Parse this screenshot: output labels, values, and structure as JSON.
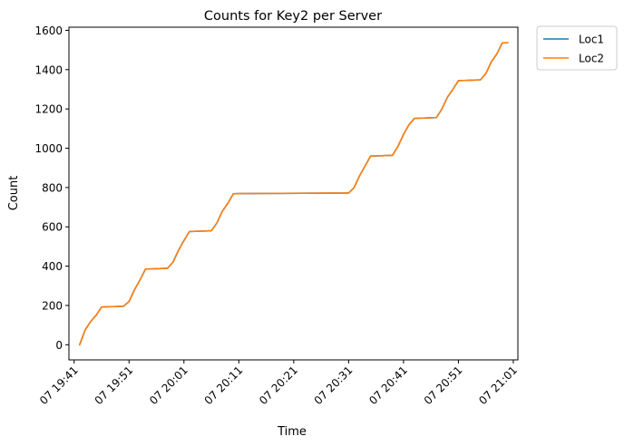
{
  "chart_data": {
    "type": "line",
    "title": "Counts for Key2 per Server",
    "xlabel": "Time",
    "ylabel": "Count",
    "x_ticks": [
      "07 19:41",
      "07 19:51",
      "07 20:01",
      "07 20:11",
      "07 20:21",
      "07 20:31",
      "07 20:41",
      "07 20:51",
      "07 21:01"
    ],
    "y_ticks": [
      "0",
      "200",
      "400",
      "600",
      "800",
      "1000",
      "1200",
      "1400",
      "1600"
    ],
    "xlim": [
      "07 19:40:03",
      "07 21:01:50"
    ],
    "ylim": [
      -77,
      1616
    ],
    "grid": false,
    "legend": "outside-top-right",
    "x": [
      "07 19:42",
      "07 19:43",
      "07 19:44",
      "07 19:45",
      "07 19:46",
      "07 19:47",
      "07 19:48",
      "07 19:49",
      "07 19:50",
      "07 19:51",
      "07 19:52",
      "07 19:53",
      "07 19:54",
      "07 19:55",
      "07 19:56",
      "07 19:57",
      "07 19:58",
      "07 19:59",
      "07 20:00",
      "07 20:01",
      "07 20:02",
      "07 20:03",
      "07 20:04",
      "07 20:05",
      "07 20:06",
      "07 20:07",
      "07 20:08",
      "07 20:09",
      "07 20:10",
      "07 20:11",
      "07 20:31",
      "07 20:32",
      "07 20:33",
      "07 20:34",
      "07 20:35",
      "07 20:36",
      "07 20:37",
      "07 20:38",
      "07 20:39",
      "07 20:40",
      "07 20:41",
      "07 20:42",
      "07 20:43",
      "07 20:44",
      "07 20:45",
      "07 20:46",
      "07 20:47",
      "07 20:48",
      "07 20:49",
      "07 20:50",
      "07 20:51",
      "07 20:52",
      "07 20:53",
      "07 20:54",
      "07 20:55",
      "07 20:56",
      "07 20:57",
      "07 20:58",
      "07 20:59",
      "07 21:00"
    ],
    "series": [
      {
        "name": "Loc1",
        "color": "#1f77b4",
        "values": [
          0,
          75,
          118,
          150,
          192,
          193,
          194,
          195,
          196,
          220,
          280,
          330,
          385,
          386,
          387,
          388,
          389,
          420,
          480,
          530,
          576,
          577,
          578,
          579,
          580,
          620,
          680,
          720,
          768,
          769,
          772,
          800,
          860,
          910,
          960,
          961,
          962,
          963,
          964,
          1010,
          1070,
          1120,
          1152,
          1153,
          1154,
          1155,
          1156,
          1200,
          1260,
          1300,
          1344,
          1345,
          1346,
          1347,
          1348,
          1380,
          1440,
          1480,
          1536,
          1537
        ]
      },
      {
        "name": "Loc2",
        "color": "#ff7f0e",
        "values": [
          0,
          75,
          118,
          150,
          192,
          193,
          194,
          195,
          196,
          220,
          280,
          330,
          385,
          386,
          387,
          388,
          389,
          420,
          480,
          530,
          576,
          577,
          578,
          579,
          580,
          620,
          680,
          720,
          768,
          769,
          772,
          800,
          860,
          910,
          960,
          961,
          962,
          963,
          964,
          1010,
          1070,
          1120,
          1152,
          1153,
          1154,
          1155,
          1156,
          1200,
          1260,
          1300,
          1344,
          1345,
          1346,
          1347,
          1348,
          1380,
          1440,
          1480,
          1536,
          1537
        ]
      }
    ]
  }
}
